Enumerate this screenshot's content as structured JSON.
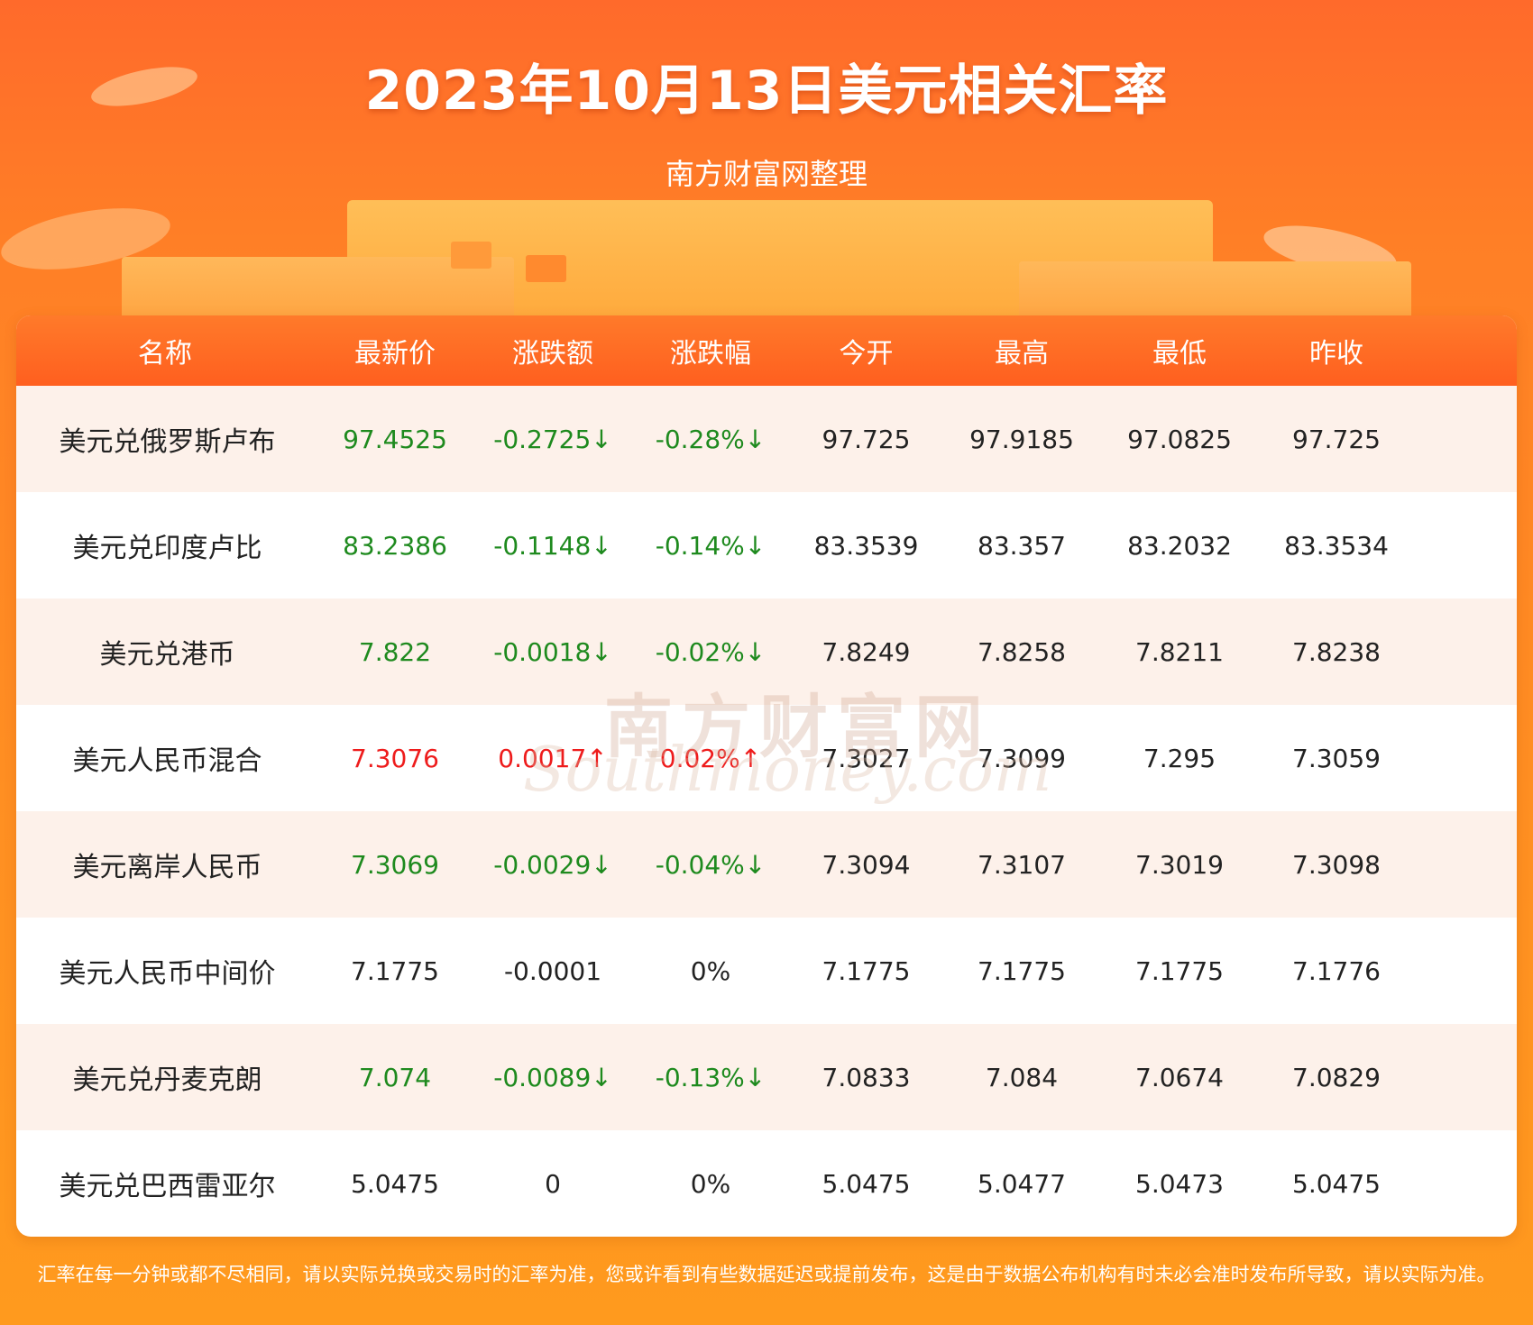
{
  "header": {
    "title": "2023年10月13日美元相关汇率",
    "subtitle": "南方财富网整理"
  },
  "table": {
    "columns": [
      "名称",
      "最新价",
      "涨跌额",
      "涨跌幅",
      "今开",
      "最高",
      "最低",
      "昨收"
    ],
    "rows": [
      {
        "name": "美元兑俄罗斯卢布",
        "latest": "97.4525",
        "change": "-0.2725↓",
        "pct": "-0.28%↓",
        "open": "97.725",
        "high": "97.9185",
        "low": "97.0825",
        "prev": "97.725",
        "trend": "down"
      },
      {
        "name": "美元兑印度卢比",
        "latest": "83.2386",
        "change": "-0.1148↓",
        "pct": "-0.14%↓",
        "open": "83.3539",
        "high": "83.357",
        "low": "83.2032",
        "prev": "83.3534",
        "trend": "down"
      },
      {
        "name": "美元兑港币",
        "latest": "7.822",
        "change": "-0.0018↓",
        "pct": "-0.02%↓",
        "open": "7.8249",
        "high": "7.8258",
        "low": "7.8211",
        "prev": "7.8238",
        "trend": "down"
      },
      {
        "name": "美元人民币混合",
        "latest": "7.3076",
        "change": "0.0017↑",
        "pct": "0.02%↑",
        "open": "7.3027",
        "high": "7.3099",
        "low": "7.295",
        "prev": "7.3059",
        "trend": "up"
      },
      {
        "name": "美元离岸人民币",
        "latest": "7.3069",
        "change": "-0.0029↓",
        "pct": "-0.04%↓",
        "open": "7.3094",
        "high": "7.3107",
        "low": "7.3019",
        "prev": "7.3098",
        "trend": "down"
      },
      {
        "name": "美元人民币中间价",
        "latest": "7.1775",
        "change": "-0.0001",
        "pct": "0%",
        "open": "7.1775",
        "high": "7.1775",
        "low": "7.1775",
        "prev": "7.1776",
        "trend": "flat"
      },
      {
        "name": "美元兑丹麦克朗",
        "latest": "7.074",
        "change": "-0.0089↓",
        "pct": "-0.13%↓",
        "open": "7.0833",
        "high": "7.084",
        "low": "7.0674",
        "prev": "7.0829",
        "trend": "down"
      },
      {
        "name": "美元兑巴西雷亚尔",
        "latest": "5.0475",
        "change": "0",
        "pct": "0%",
        "open": "5.0475",
        "high": "5.0477",
        "low": "5.0473",
        "prev": "5.0475",
        "trend": "flat"
      }
    ]
  },
  "watermark": {
    "cn": "南方财富网",
    "en": "Southmoney.com"
  },
  "footer": {
    "note": "汇率在每一分钟或都不尽相同，请以实际兑换或交易时的汇率为准，您或许看到有些数据延迟或提前发布，这是由于数据公布机构有时未必会准时发布所导致，请以实际为准。"
  },
  "colors": {
    "down": "#1e8a1e",
    "up": "#ee1c1c",
    "header_bg": "#ff6a2b"
  }
}
